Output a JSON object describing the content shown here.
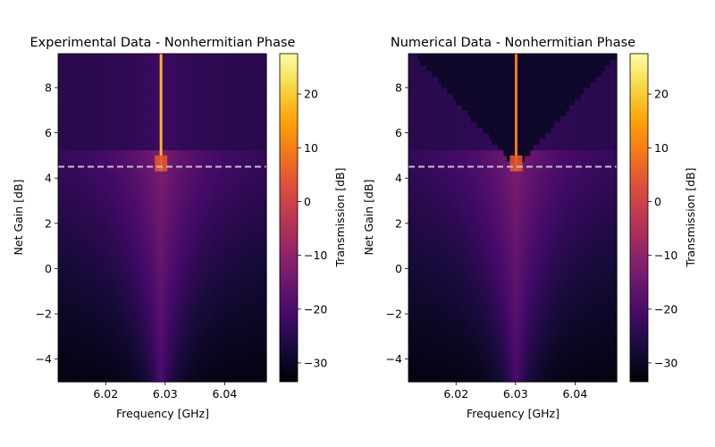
{
  "chart_data": [
    {
      "type": "heatmap",
      "title": "Experimental Data - Nonhermitian Phase",
      "xlabel": "Frequency [GHz]",
      "ylabel": "Net Gain [dB]",
      "xlim": [
        6.012,
        6.047
      ],
      "ylim": [
        -5,
        9.5
      ],
      "xticks": [
        6.02,
        6.03,
        6.04
      ],
      "xtick_labels": [
        "6.02",
        "6.03",
        "6.04"
      ],
      "yticks": [
        -4,
        -2,
        0,
        2,
        4,
        6,
        8
      ],
      "ytick_labels": [
        "−4",
        "−2",
        "0",
        "2",
        "4",
        "6",
        "8"
      ],
      "threshold_line": {
        "y": 4.5,
        "style": "dashed",
        "color": "#c8bcd6"
      },
      "peak": {
        "x": 6.0293,
        "from_gain": 4.3
      },
      "colorbar": {
        "label": "Transmission [dB]",
        "range": [
          -33.5,
          27.5
        ],
        "ticks": [
          -30,
          -20,
          -10,
          0,
          10,
          20
        ],
        "tick_labels": [
          "−30",
          "−20",
          "−10",
          "0",
          "10",
          "20"
        ],
        "colormap": "inferno"
      }
    },
    {
      "type": "heatmap",
      "title": "Numerical Data - Nonhermitian Phase",
      "xlabel": "Frequency [GHz]",
      "ylabel": "Net Gain [dB]",
      "xlim": [
        6.012,
        6.047
      ],
      "ylim": [
        -5,
        9.5
      ],
      "xticks": [
        6.02,
        6.03,
        6.04
      ],
      "xtick_labels": [
        "6.02",
        "6.03",
        "6.04"
      ],
      "yticks": [
        -4,
        -2,
        0,
        2,
        4,
        6,
        8
      ],
      "ytick_labels": [
        "−4",
        "−2",
        "0",
        "2",
        "4",
        "6",
        "8"
      ],
      "threshold_line": {
        "y": 4.5,
        "style": "dashed",
        "color": "#c8bcd6"
      },
      "peak": {
        "x": 6.0301,
        "from_gain": 4.3
      },
      "colorbar": {
        "label": "Transmission [dB]",
        "range": [
          -33.5,
          27.5
        ],
        "ticks": [
          -30,
          -20,
          -10,
          0,
          10,
          20
        ],
        "tick_labels": [
          "−30",
          "−20",
          "−10",
          "0",
          "10",
          "20"
        ],
        "colormap": "inferno"
      }
    }
  ]
}
